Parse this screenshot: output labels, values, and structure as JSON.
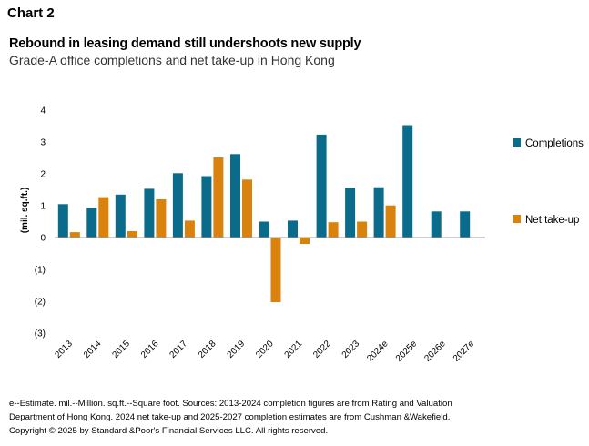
{
  "header": {
    "chart_label": "Chart 2",
    "title": "Rebound in leasing demand still undershoots new supply",
    "subtitle": "Grade-A office completions and net take-up in Hong Kong"
  },
  "footnote": {
    "line1": "e--Estimate. mil.--Million. sq.ft.--Square foot. Sources: 2013-2024 completion figures are from Rating and Valuation",
    "line2": "Department of Hong Kong. 2024 net take-up and 2025-2027 completion estimates are from Cushman &Wakefield.",
    "line3": "Copyright © 2025 by Standard &Poor's Financial Services LLC. All rights reserved."
  },
  "colors": {
    "completions": "#0a6b8a",
    "net_take_up": "#d9820e"
  },
  "chart_data": {
    "type": "bar",
    "title": "Rebound in leasing demand still undershoots new supply",
    "subtitle": "Grade-A office completions and net take-up in Hong Kong",
    "xlabel": "",
    "ylabel": "(mil. sq.ft.)",
    "ylim": [
      -3,
      4
    ],
    "yticks": [
      4,
      3,
      2,
      1,
      0,
      -1,
      -2,
      -3
    ],
    "ytick_labels": [
      "4",
      "3",
      "2",
      "1",
      "0",
      "(1)",
      "(2)",
      "(3)"
    ],
    "grid": false,
    "legend_position": "right",
    "categories": [
      "2013",
      "2014",
      "2015",
      "2016",
      "2017",
      "2018",
      "2019",
      "2020",
      "2021",
      "2022",
      "2023",
      "2024e",
      "2025e",
      "2026e",
      "2027e"
    ],
    "series": [
      {
        "name": "Completions",
        "color": "#0a6b8a",
        "values": [
          1.05,
          0.93,
          1.35,
          1.53,
          2.02,
          1.93,
          2.62,
          0.5,
          0.53,
          3.23,
          1.56,
          1.58,
          3.53,
          0.82,
          0.82
        ]
      },
      {
        "name": "Net take-up",
        "color": "#d9820e",
        "values": [
          0.17,
          1.27,
          0.2,
          1.2,
          0.53,
          2.52,
          1.82,
          -2.03,
          -0.2,
          0.48,
          0.5,
          1.01,
          null,
          null,
          null
        ]
      }
    ]
  }
}
